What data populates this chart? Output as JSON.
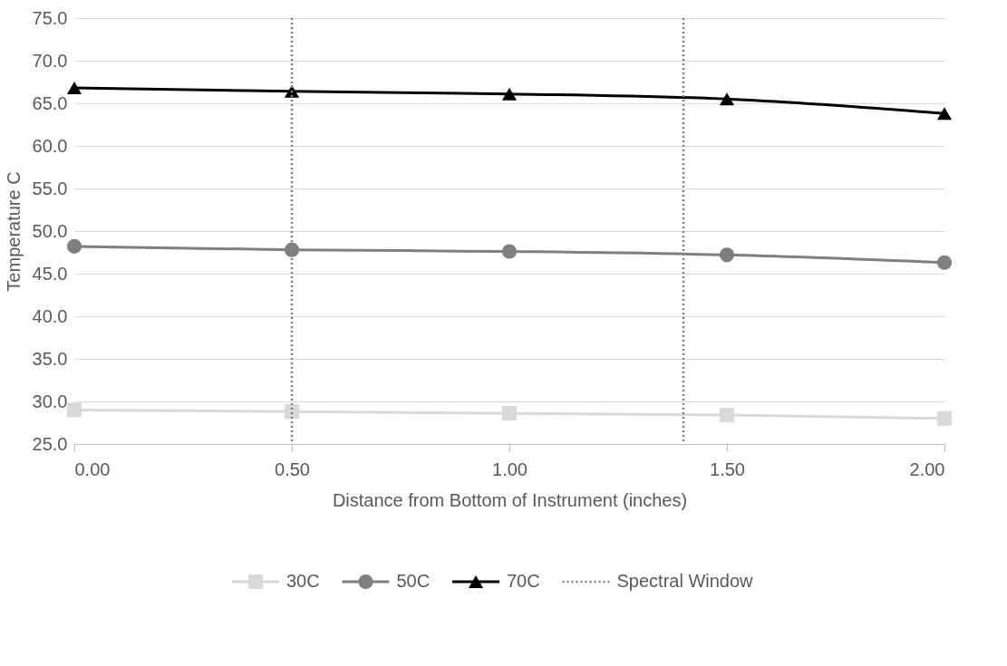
{
  "chart_data": {
    "type": "line",
    "xlabel": "Distance from Bottom of Instrument (inches)",
    "ylabel": "Temperature C",
    "x": [
      0,
      0.5,
      1.0,
      1.5,
      2.0
    ],
    "series": [
      {
        "name": "30C",
        "color": "#d9d9d9",
        "marker": "square",
        "values": [
          29.0,
          28.8,
          28.6,
          28.4,
          28.0
        ]
      },
      {
        "name": "50C",
        "color": "#7f7f7f",
        "marker": "circle",
        "values": [
          48.2,
          47.8,
          47.6,
          47.2,
          46.3
        ]
      },
      {
        "name": "70C",
        "color": "#000000",
        "marker": "triangle",
        "values": [
          66.8,
          66.4,
          66.1,
          65.5,
          63.8
        ]
      }
    ],
    "xlim": [
      0,
      2
    ],
    "xticks": [
      {
        "value": 0,
        "label": "0.00"
      },
      {
        "value": 0.5,
        "label": "0.50"
      },
      {
        "value": 1.0,
        "label": "1.00"
      },
      {
        "value": 1.5,
        "label": "1.50"
      },
      {
        "value": 2.0,
        "label": "2.00"
      }
    ],
    "ylim": [
      25,
      75
    ],
    "yticks": [
      {
        "value": 25,
        "label": "25.0"
      },
      {
        "value": 30,
        "label": "30.0"
      },
      {
        "value": 35,
        "label": "35.0"
      },
      {
        "value": 40,
        "label": "40.0"
      },
      {
        "value": 45,
        "label": "45.0"
      },
      {
        "value": 50,
        "label": "50.0"
      },
      {
        "value": 55,
        "label": "55.0"
      },
      {
        "value": 60,
        "label": "60.0"
      },
      {
        "value": 65,
        "label": "65.0"
      },
      {
        "value": 70,
        "label": "70.0"
      },
      {
        "value": 75,
        "label": "75.0"
      }
    ],
    "ref_lines": [
      {
        "axis": "x",
        "value": 0.5,
        "label": "Spectral Window",
        "color": "#808080",
        "line_style": "dotted"
      },
      {
        "axis": "x",
        "value": 1.4,
        "color": "#808080",
        "line_style": "dotted"
      }
    ],
    "grid": "y",
    "legend": "bottom",
    "line_style": "solid"
  }
}
